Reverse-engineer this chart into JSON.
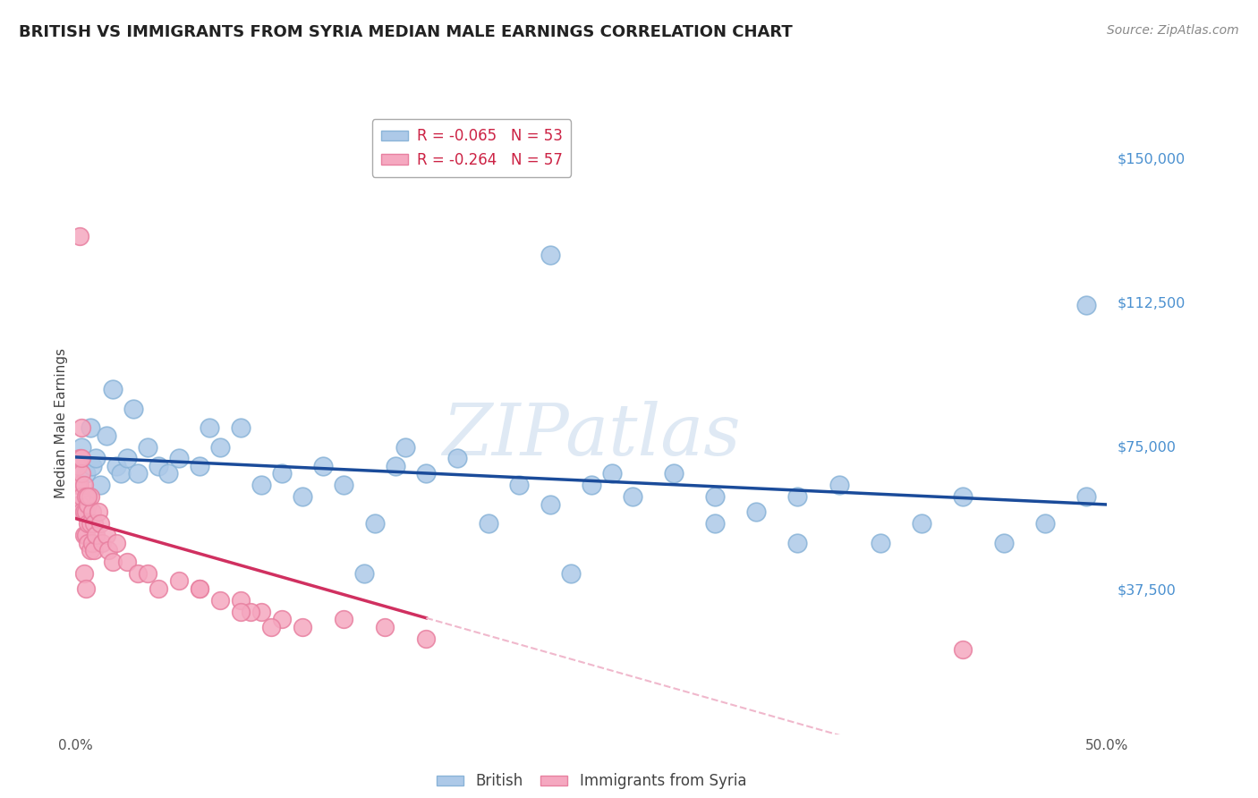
{
  "title": "BRITISH VS IMMIGRANTS FROM SYRIA MEDIAN MALE EARNINGS CORRELATION CHART",
  "source": "Source: ZipAtlas.com",
  "ylabel": "Median Male Earnings",
  "xlim": [
    0.0,
    0.5
  ],
  "ylim": [
    0,
    162500
  ],
  "yticks": [
    0,
    37500,
    75000,
    112500,
    150000
  ],
  "ytick_labels": [
    "",
    "$37,500",
    "$75,000",
    "$112,500",
    "$150,000"
  ],
  "xticks": [
    0.0,
    0.05,
    0.1,
    0.15,
    0.2,
    0.25,
    0.3,
    0.35,
    0.4,
    0.45,
    0.5
  ],
  "xtick_labels": [
    "0.0%",
    "",
    "",
    "",
    "",
    "",
    "",
    "",
    "",
    "",
    "50.0%"
  ],
  "british_color": "#adc9e8",
  "syrian_color": "#f5a8c0",
  "british_edge": "#8ab4d8",
  "syrian_edge": "#e880a0",
  "british_line_color": "#1a4b9a",
  "syrian_line_color": "#d03060",
  "syrian_line_dashed_color": "#f0b8cc",
  "R_british": -0.065,
  "N_british": 53,
  "R_syrian": -0.264,
  "N_syrian": 57,
  "watermark": "ZIPatlas",
  "background_color": "#ffffff",
  "grid_color": "#b8cfe0",
  "british_x": [
    0.003,
    0.005,
    0.007,
    0.008,
    0.01,
    0.012,
    0.015,
    0.018,
    0.02,
    0.022,
    0.025,
    0.028,
    0.03,
    0.035,
    0.04,
    0.045,
    0.05,
    0.06,
    0.065,
    0.07,
    0.08,
    0.09,
    0.1,
    0.11,
    0.12,
    0.13,
    0.145,
    0.155,
    0.17,
    0.185,
    0.2,
    0.215,
    0.23,
    0.25,
    0.27,
    0.29,
    0.31,
    0.33,
    0.35,
    0.37,
    0.39,
    0.41,
    0.43,
    0.45,
    0.47,
    0.49,
    0.26,
    0.31,
    0.16,
    0.24,
    0.35,
    0.14,
    0.49
  ],
  "british_y": [
    75000,
    68000,
    80000,
    70000,
    72000,
    65000,
    78000,
    90000,
    70000,
    68000,
    72000,
    85000,
    68000,
    75000,
    70000,
    68000,
    72000,
    70000,
    80000,
    75000,
    80000,
    65000,
    68000,
    62000,
    70000,
    65000,
    55000,
    70000,
    68000,
    72000,
    55000,
    65000,
    60000,
    65000,
    62000,
    68000,
    62000,
    58000,
    62000,
    65000,
    50000,
    55000,
    62000,
    50000,
    55000,
    62000,
    68000,
    55000,
    75000,
    42000,
    50000,
    42000,
    112000
  ],
  "british_y_outliers": [
    125000
  ],
  "british_x_outliers": [
    0.23
  ],
  "syrian_x": [
    0.001,
    0.001,
    0.002,
    0.002,
    0.002,
    0.003,
    0.003,
    0.003,
    0.004,
    0.004,
    0.004,
    0.005,
    0.005,
    0.005,
    0.006,
    0.006,
    0.006,
    0.007,
    0.007,
    0.007,
    0.008,
    0.008,
    0.009,
    0.009,
    0.01,
    0.011,
    0.012,
    0.013,
    0.015,
    0.016,
    0.018,
    0.02,
    0.025,
    0.03,
    0.035,
    0.04,
    0.05,
    0.06,
    0.07,
    0.08,
    0.09,
    0.1,
    0.11,
    0.13,
    0.15,
    0.17,
    0.085,
    0.095,
    0.06,
    0.08,
    0.002,
    0.003,
    0.004,
    0.005,
    0.006,
    0.43,
    0.003
  ],
  "syrian_y": [
    70000,
    65000,
    72000,
    65000,
    60000,
    68000,
    62000,
    58000,
    65000,
    58000,
    52000,
    62000,
    58000,
    52000,
    60000,
    55000,
    50000,
    62000,
    55000,
    48000,
    58000,
    50000,
    55000,
    48000,
    52000,
    58000,
    55000,
    50000,
    52000,
    48000,
    45000,
    50000,
    45000,
    42000,
    42000,
    38000,
    40000,
    38000,
    35000,
    35000,
    32000,
    30000,
    28000,
    30000,
    28000,
    25000,
    32000,
    28000,
    38000,
    32000,
    130000,
    72000,
    42000,
    38000,
    62000,
    22000,
    80000
  ]
}
